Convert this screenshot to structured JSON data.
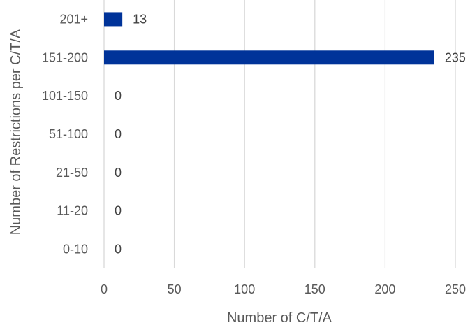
{
  "chart_data": {
    "type": "bar",
    "orientation": "horizontal",
    "categories": [
      "201+",
      "151-200",
      "101-150",
      "51-100",
      "21-50",
      "11-20",
      "0-10"
    ],
    "values": [
      13,
      235,
      0,
      0,
      0,
      0,
      0
    ],
    "data_labels": [
      "13",
      "235",
      "0",
      "0",
      "0",
      "0",
      "0"
    ],
    "xlabel": "Number of C/T/A",
    "ylabel": "Number of Restrictions per C/T/A",
    "xlim": [
      0,
      250
    ],
    "xticks": [
      0,
      50,
      100,
      150,
      200,
      250
    ],
    "xtick_labels": [
      "0",
      "50",
      "100",
      "150",
      "200",
      "250"
    ],
    "grid": "vertical",
    "legend": "none",
    "colors": {
      "bar": "#003399",
      "grid": "#d9d9d9",
      "text": "#595959"
    }
  }
}
